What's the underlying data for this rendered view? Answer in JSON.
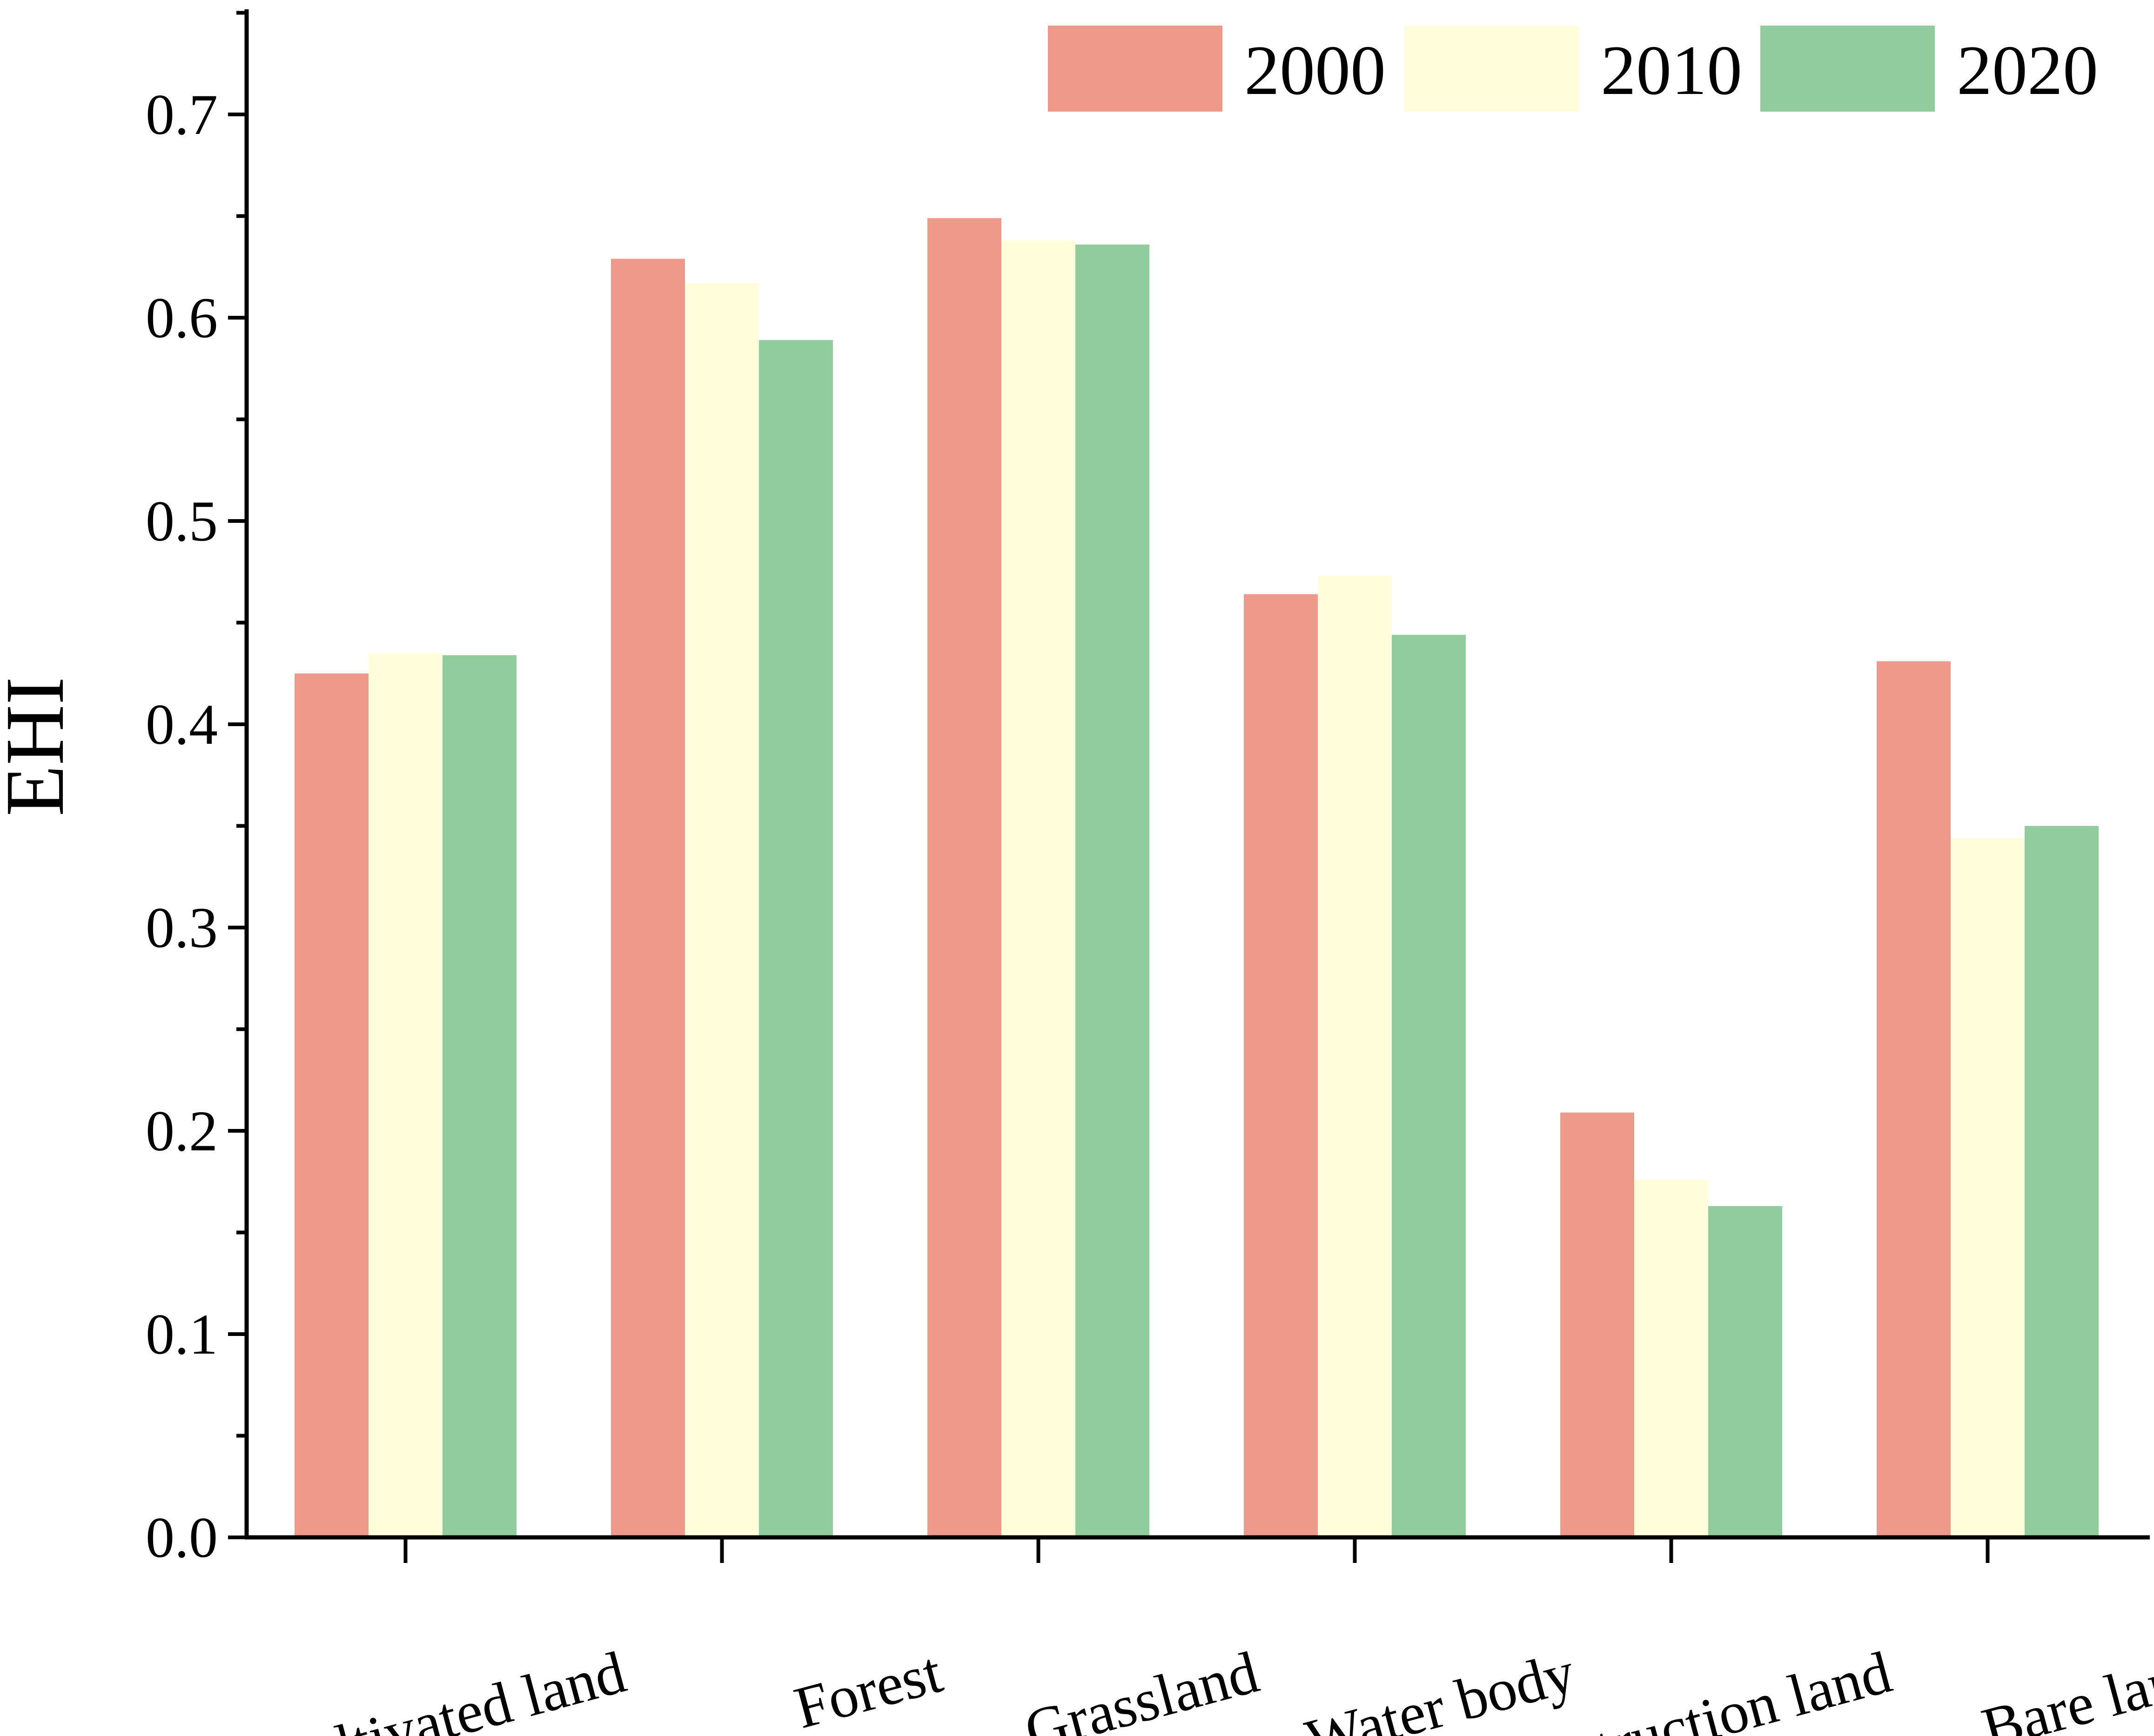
{
  "chart_data": {
    "type": "bar",
    "title": "",
    "xlabel": "",
    "ylabel": "EHI",
    "ylim": [
      0,
      0.75
    ],
    "yticks": [
      "0.0",
      "0.1",
      "0.2",
      "0.3",
      "0.4",
      "0.5",
      "0.6",
      "0.7"
    ],
    "categories": [
      "Cultivated land",
      "Forest",
      "Grassland",
      "Water body",
      "Construction land",
      "Bare land"
    ],
    "series": [
      {
        "name": "2000",
        "color": "#EE998A",
        "values": [
          0.425,
          0.629,
          0.649,
          0.464,
          0.209,
          0.431
        ]
      },
      {
        "name": "2010",
        "color": "#FFFDDA",
        "values": [
          0.435,
          0.617,
          0.638,
          0.473,
          0.176,
          0.344
        ]
      },
      {
        "name": "2020",
        "color": "#91CC9C",
        "values": [
          0.434,
          0.589,
          0.636,
          0.444,
          0.163,
          0.35
        ]
      }
    ],
    "legend_position": "top-right",
    "grid": false
  }
}
